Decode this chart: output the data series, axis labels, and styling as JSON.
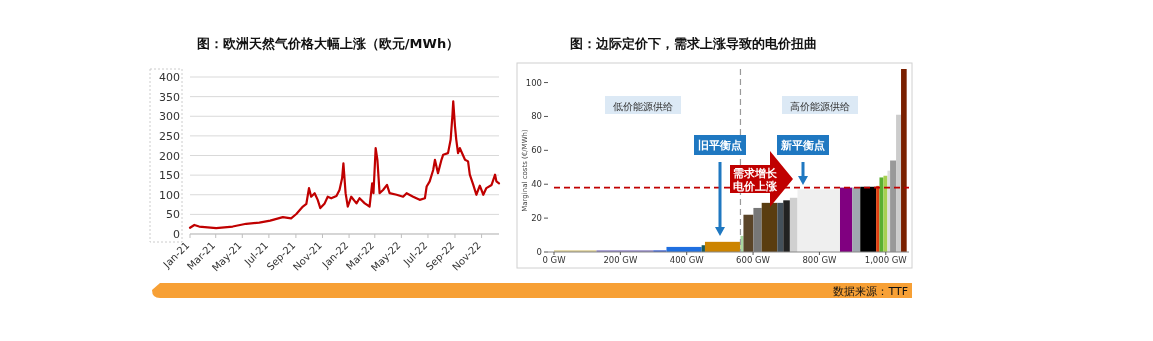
{
  "chart_data": [
    {
      "type": "line",
      "title": "图：欧洲天然气价格大幅上涨（欧元/MWh）",
      "color": "#c00000",
      "x": [
        "2021-01-01",
        "2021-01-11",
        "2021-01-22",
        "2021-03-02",
        "2021-04-09",
        "2021-05-10",
        "2021-06-09",
        "2021-07-04",
        "2021-08-02",
        "2021-08-21",
        "2021-09-02",
        "2021-09-17",
        "2021-09-25",
        "2021-10-01",
        "2021-10-06",
        "2021-10-14",
        "2021-10-21",
        "2021-10-27",
        "2021-11-06",
        "2021-11-13",
        "2021-11-21",
        "2021-12-03",
        "2021-12-10",
        "2021-12-16",
        "2021-12-19",
        "2021-12-24",
        "2021-12-29",
        "2022-01-06",
        "2022-01-18",
        "2022-01-25",
        "2022-02-06",
        "2022-02-17",
        "2022-02-23",
        "2022-02-26",
        "2022-03-03",
        "2022-03-07",
        "2022-03-12",
        "2022-03-20",
        "2022-03-29",
        "2022-04-04",
        "2022-04-20",
        "2022-05-05",
        "2022-05-13",
        "2022-05-28",
        "2022-06-12",
        "2022-06-24",
        "2022-06-28",
        "2022-07-05",
        "2022-07-13",
        "2022-07-17",
        "2022-07-24",
        "2022-08-01",
        "2022-08-05",
        "2022-08-16",
        "2022-08-22",
        "2022-08-26",
        "2022-08-28",
        "2022-09-01",
        "2022-09-04",
        "2022-09-08",
        "2022-09-12",
        "2022-09-24",
        "2022-10-01",
        "2022-10-05",
        "2022-10-13",
        "2022-10-20",
        "2022-10-28",
        "2022-11-05",
        "2022-11-12",
        "2022-11-24",
        "2022-12-02",
        "2022-12-05",
        "2022-12-11"
      ],
      "values": [
        16,
        23,
        19,
        15,
        19,
        26,
        29,
        34,
        43,
        40,
        51,
        70,
        77,
        117,
        95,
        104,
        87,
        66,
        78,
        95,
        91,
        97,
        112,
        142,
        180,
        104,
        70,
        95,
        78,
        91,
        78,
        70,
        129,
        104,
        219,
        189,
        104,
        112,
        125,
        104,
        100,
        95,
        104,
        95,
        87,
        91,
        121,
        134,
        163,
        189,
        155,
        189,
        202,
        206,
        240,
        300,
        338,
        274,
        240,
        206,
        219,
        189,
        185,
        151,
        125,
        100,
        123,
        100,
        117,
        125,
        151,
        134,
        129
      ],
      "xlim": [
        "2021-01-01",
        "2022-12-11"
      ],
      "xticks": [
        {
          "value": "2021-01-01",
          "label": "Jan-21"
        },
        {
          "value": "2021-03-01",
          "label": "Mar-21"
        },
        {
          "value": "2021-05-01",
          "label": "May-21"
        },
        {
          "value": "2021-07-01",
          "label": "Jul-21"
        },
        {
          "value": "2021-09-01",
          "label": "Sep-21"
        },
        {
          "value": "2021-11-01",
          "label": "Nov-21"
        },
        {
          "value": "2022-01-01",
          "label": "Jan-22"
        },
        {
          "value": "2022-03-01",
          "label": "Mar-22"
        },
        {
          "value": "2022-05-01",
          "label": "May-22"
        },
        {
          "value": "2022-07-01",
          "label": "Jul-22"
        },
        {
          "value": "2022-09-01",
          "label": "Sep-22"
        },
        {
          "value": "2022-11-01",
          "label": "Nov-22"
        }
      ],
      "ylim": [
        0,
        400
      ],
      "yticks": [
        0,
        50,
        100,
        150,
        200,
        250,
        300,
        350,
        400
      ],
      "grid": "y"
    },
    {
      "type": "histogram",
      "title": "图：边际定价下，需求上涨导致的电价扭曲",
      "ylabel": "Marginal costs (€/MWh)",
      "bins": [
        0,
        128,
        299,
        339,
        445,
        455,
        562,
        571,
        601,
        626,
        673,
        691,
        711,
        734,
        862,
        899,
        923,
        971,
        981,
        993,
        1005,
        1013,
        1031,
        1046,
        1063
      ],
      "values": [
        1,
        1,
        1,
        3,
        4,
        6,
        9.5,
        22,
        26,
        29,
        29,
        30.5,
        32,
        37,
        38,
        38,
        38.5,
        39,
        44,
        45,
        48,
        54,
        81,
        108
      ],
      "colors": [
        "#d8c98a",
        "#8a7fc0",
        "#3a5fd0",
        "#1f6fe0",
        "#1a5a5a",
        "#cc8400",
        "#a8d8a0",
        "#5a4428",
        "#777777",
        "#5a3d10",
        "#44505a",
        "#222222",
        "#d0d0d0",
        "#efefef",
        "#800080",
        "#a0a8b0",
        "#000000",
        "#e04010",
        "#5ab030",
        "#a8d050",
        "#dddddd",
        "#999999",
        "#cccccc",
        "#7a2000"
      ],
      "xlim": [
        0,
        1070
      ],
      "xticks": [
        {
          "value": 0,
          "label": "0 GW"
        },
        {
          "value": 200,
          "label": "200 GW"
        },
        {
          "value": 400,
          "label": "400 GW"
        },
        {
          "value": 600,
          "label": "600 GW"
        },
        {
          "value": 800,
          "label": "800 GW"
        },
        {
          "value": 1000,
          "label": "1,000 GW"
        }
      ],
      "ylim": [
        0,
        108
      ],
      "yticks": [
        0,
        20,
        40,
        60,
        80,
        100
      ],
      "ref_lines": [
        {
          "axis": "y",
          "value": 38,
          "color": "#c00000",
          "line_style": "dashed"
        },
        {
          "axis": "x",
          "value": 562,
          "color": "#999999",
          "line_style": "dashed"
        }
      ],
      "annotations": [
        "低价能源供给",
        "高价能源供给",
        "旧平衡点",
        "新平衡点",
        "需求增长",
        "电价上涨",
        "数据来源：TTF"
      ]
    }
  ]
}
